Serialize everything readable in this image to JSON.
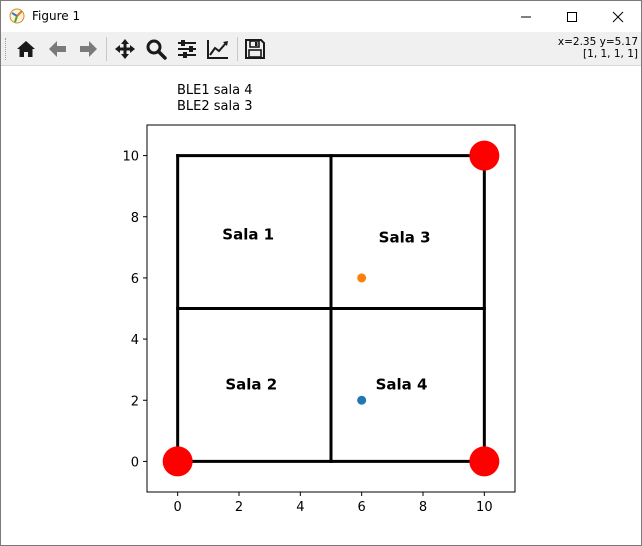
{
  "window": {
    "title": "Figure 1",
    "controls": {
      "minimize": "minimize",
      "maximize": "maximize",
      "close": "close"
    }
  },
  "toolbar": {
    "buttons": [
      {
        "name": "home",
        "icon": "home-icon"
      },
      {
        "name": "back",
        "icon": "arrow-left-icon"
      },
      {
        "name": "forward",
        "icon": "arrow-right-icon"
      },
      {
        "name": "pan",
        "icon": "move-icon"
      },
      {
        "name": "zoom",
        "icon": "magnifier-icon"
      },
      {
        "name": "subplots",
        "icon": "sliders-icon"
      },
      {
        "name": "edit-axes",
        "icon": "line-chart-icon"
      },
      {
        "name": "save",
        "icon": "floppy-disk-icon"
      }
    ],
    "coords_line1": "x=2.35 y=5.17",
    "coords_line2": "[1, 1, 1, 1]"
  },
  "figure": {
    "text_lines": [
      "BLE1 sala 4",
      "BLE2 sala 3"
    ]
  },
  "chart_data": {
    "type": "scatter",
    "xlim": [
      -1.0,
      11.0
    ],
    "ylim": [
      -1.0,
      11.0
    ],
    "xticks": [
      0,
      2,
      4,
      6,
      8,
      10
    ],
    "yticks": [
      0,
      2,
      4,
      6,
      8,
      10
    ],
    "grid": false,
    "walls": [
      {
        "x1": 0,
        "y1": 10,
        "x2": 10,
        "y2": 10
      },
      {
        "x1": 0,
        "y1": 0,
        "x2": 10,
        "y2": 0
      },
      {
        "x1": 0,
        "y1": 0,
        "x2": 0,
        "y2": 10
      },
      {
        "x1": 10,
        "y1": 0,
        "x2": 10,
        "y2": 10
      },
      {
        "x1": 5,
        "y1": 0,
        "x2": 5,
        "y2": 10
      },
      {
        "x1": 0,
        "y1": 5,
        "x2": 10,
        "y2": 5
      }
    ],
    "room_labels": [
      {
        "text": "Sala 1",
        "x": 2.3,
        "y": 7.4
      },
      {
        "text": "Sala 3",
        "x": 7.4,
        "y": 7.3
      },
      {
        "text": "Sala 2",
        "x": 2.4,
        "y": 2.5
      },
      {
        "text": "Sala 4",
        "x": 7.3,
        "y": 2.5
      }
    ],
    "anchors": [
      {
        "x": 10,
        "y": 10
      },
      {
        "x": 0,
        "y": 0
      },
      {
        "x": 10,
        "y": 0
      }
    ],
    "points": [
      {
        "x": 6,
        "y": 6,
        "color": "#ff7f0e"
      },
      {
        "x": 6,
        "y": 2,
        "color": "#1f77b4"
      }
    ],
    "colors": {
      "walls": "#000000",
      "anchors": "#ff0000"
    }
  }
}
